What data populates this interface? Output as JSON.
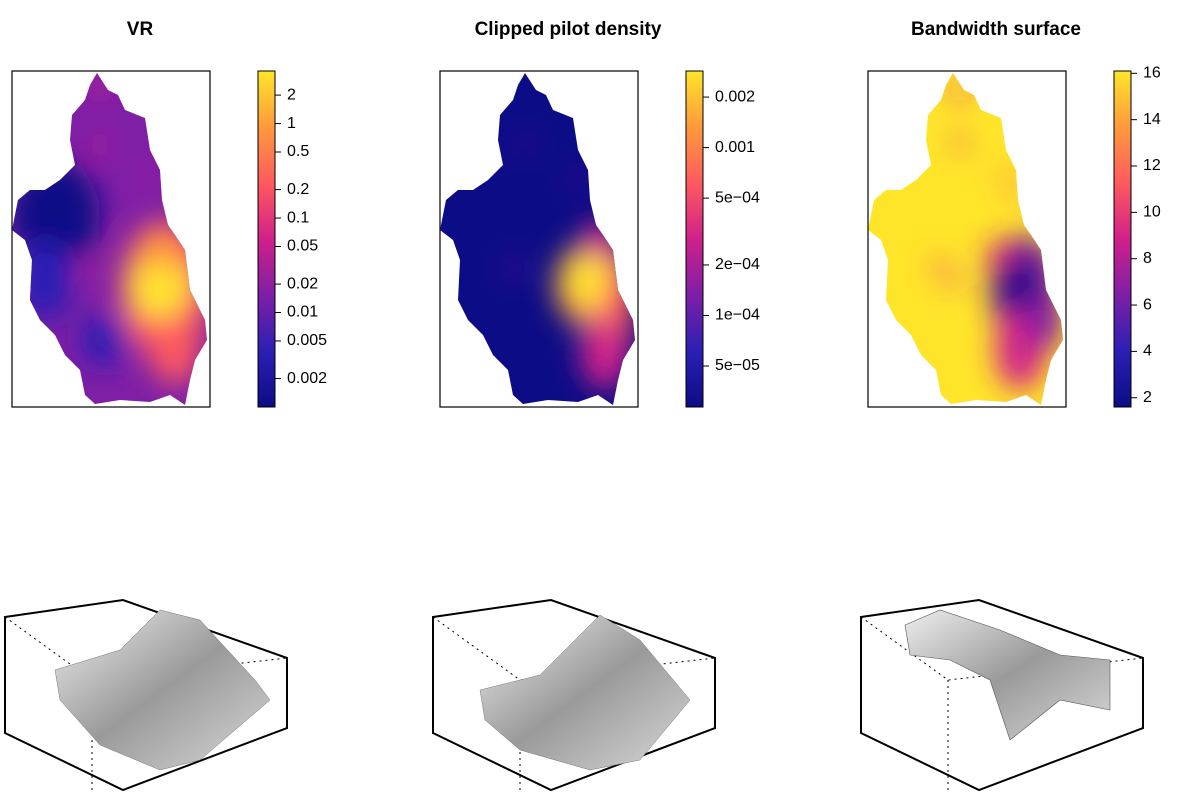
{
  "chart_data": [
    {
      "type": "heatmap",
      "title": "VR",
      "colorbar": {
        "log": true,
        "zlim": [
          0.001,
          3.6
        ],
        "colors": [
          "#0c0c86",
          "#2b1fb4",
          "#7e1fa6",
          "#d1208a",
          "#ff5a5e",
          "#ff9a3c",
          "#ffe52a"
        ],
        "zticks": [
          2,
          1,
          0.5,
          0.2,
          0.1,
          0.05,
          0.02,
          0.01,
          0.005,
          0.002
        ]
      }
    },
    {
      "type": "heatmap",
      "title": "Clipped pilot density",
      "colorbar": {
        "log": true,
        "zlim": [
          2.85e-05,
          0.00286
        ],
        "colors": [
          "#0c0c86",
          "#2b1fb4",
          "#7e1fa6",
          "#d1208a",
          "#ff5a5e",
          "#ff9a3c",
          "#ffe52a"
        ],
        "zticks": [
          {
            "value": 0.002,
            "label": "0.002"
          },
          {
            "value": 0.001,
            "label": "0.001"
          },
          {
            "value": 0.0005,
            "label": "5e−04"
          },
          {
            "value": 0.0002,
            "label": "2e−04"
          },
          {
            "value": 0.0001,
            "label": "1e−04"
          },
          {
            "value": 5e-05,
            "label": "5e−05"
          }
        ]
      }
    },
    {
      "type": "heatmap",
      "title": "Bandwidth surface",
      "colorbar": {
        "log": false,
        "zlim": [
          1.6,
          16.1
        ],
        "colors": [
          "#0c0c86",
          "#2b1fb4",
          "#7e1fa6",
          "#d1208a",
          "#ff5a5e",
          "#ff9a3c",
          "#ffe52a"
        ],
        "zticks": [
          16,
          14,
          12,
          10,
          8,
          6,
          4,
          2
        ]
      }
    }
  ]
}
